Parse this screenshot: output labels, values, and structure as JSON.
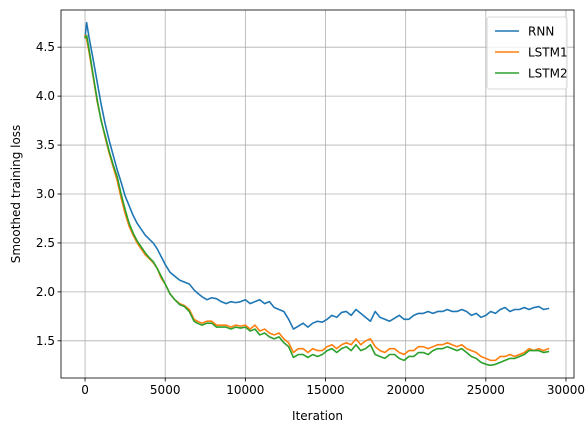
{
  "chart_data": {
    "type": "line",
    "title": "",
    "xlabel": "Iteration",
    "ylabel": "Smoothed training loss",
    "xlim": [
      -1500,
      30500
    ],
    "ylim": [
      1.12,
      4.88
    ],
    "xticks": [
      0,
      5000,
      10000,
      15000,
      20000,
      25000,
      30000
    ],
    "yticks": [
      1.5,
      2.0,
      2.5,
      3.0,
      3.5,
      4.0,
      4.5
    ],
    "xtick_labels": [
      "0",
      "5000",
      "10000",
      "15000",
      "20000",
      "25000",
      "30000"
    ],
    "ytick_labels": [
      "1.5",
      "2.0",
      "2.5",
      "3.0",
      "3.5",
      "4.0",
      "4.5"
    ],
    "grid": true,
    "legend_position": "top-right",
    "series": [
      {
        "name": "RNN",
        "color": "#1f77b4",
        "x": [
          0,
          100,
          250,
          500,
          750,
          1000,
          1250,
          1500,
          1750,
          2000,
          2250,
          2500,
          2750,
          3000,
          3250,
          3500,
          3750,
          4000,
          4250,
          4500,
          4750,
          5000,
          5300,
          5600,
          5900,
          6200,
          6500,
          6800,
          7000,
          7300,
          7600,
          7900,
          8200,
          8500,
          8800,
          9100,
          9400,
          9700,
          10000,
          10300,
          10600,
          10900,
          11200,
          11500,
          11800,
          12100,
          12400,
          12700,
          13000,
          13300,
          13600,
          13900,
          14200,
          14500,
          14800,
          15100,
          15400,
          15700,
          16000,
          16300,
          16600,
          16900,
          17200,
          17500,
          17800,
          18100,
          18400,
          18700,
          19000,
          19300,
          19600,
          19900,
          20200,
          20500,
          20800,
          21100,
          21400,
          21700,
          22000,
          22300,
          22600,
          22900,
          23200,
          23500,
          23800,
          24100,
          24400,
          24700,
          25000,
          25300,
          25600,
          25900,
          26200,
          26500,
          26800,
          27100,
          27400,
          27700,
          28000,
          28300,
          28600,
          28900
        ],
        "y": [
          4.6,
          4.75,
          4.6,
          4.38,
          4.15,
          3.92,
          3.72,
          3.55,
          3.4,
          3.25,
          3.12,
          2.98,
          2.88,
          2.78,
          2.7,
          2.64,
          2.58,
          2.54,
          2.5,
          2.44,
          2.36,
          2.28,
          2.2,
          2.16,
          2.12,
          2.1,
          2.08,
          2.02,
          1.99,
          1.95,
          1.92,
          1.94,
          1.93,
          1.9,
          1.88,
          1.9,
          1.89,
          1.9,
          1.92,
          1.88,
          1.9,
          1.92,
          1.88,
          1.9,
          1.84,
          1.82,
          1.8,
          1.72,
          1.62,
          1.65,
          1.68,
          1.64,
          1.68,
          1.7,
          1.69,
          1.72,
          1.76,
          1.74,
          1.79,
          1.8,
          1.76,
          1.82,
          1.78,
          1.74,
          1.7,
          1.8,
          1.74,
          1.72,
          1.7,
          1.73,
          1.76,
          1.72,
          1.72,
          1.76,
          1.78,
          1.78,
          1.8,
          1.78,
          1.8,
          1.8,
          1.82,
          1.8,
          1.8,
          1.82,
          1.8,
          1.76,
          1.78,
          1.74,
          1.76,
          1.8,
          1.78,
          1.82,
          1.84,
          1.8,
          1.82,
          1.82,
          1.84,
          1.82,
          1.84,
          1.85,
          1.82,
          1.83
        ]
      },
      {
        "name": "LSTM1",
        "color": "#ff7f0e",
        "x": [
          0,
          100,
          250,
          500,
          750,
          1000,
          1250,
          1500,
          1750,
          2000,
          2250,
          2500,
          2750,
          3000,
          3250,
          3500,
          3750,
          4000,
          4250,
          4500,
          4750,
          5000,
          5300,
          5600,
          5900,
          6200,
          6500,
          6800,
          7000,
          7300,
          7600,
          7900,
          8200,
          8500,
          8800,
          9100,
          9400,
          9700,
          10000,
          10300,
          10600,
          10900,
          11200,
          11500,
          11800,
          12100,
          12400,
          12700,
          13000,
          13300,
          13600,
          13900,
          14200,
          14500,
          14800,
          15100,
          15400,
          15700,
          16000,
          16300,
          16600,
          16900,
          17200,
          17500,
          17800,
          18100,
          18400,
          18700,
          19000,
          19300,
          19600,
          19900,
          20200,
          20500,
          20800,
          21100,
          21400,
          21700,
          22000,
          22300,
          22600,
          22900,
          23200,
          23500,
          23800,
          24100,
          24400,
          24700,
          25000,
          25300,
          25600,
          25900,
          26200,
          26500,
          26800,
          27100,
          27400,
          27700,
          28000,
          28300,
          28600,
          28900
        ],
        "y": [
          4.62,
          4.58,
          4.45,
          4.2,
          3.95,
          3.76,
          3.58,
          3.42,
          3.28,
          3.14,
          2.96,
          2.8,
          2.67,
          2.58,
          2.5,
          2.44,
          2.38,
          2.34,
          2.3,
          2.24,
          2.14,
          2.08,
          1.98,
          1.92,
          1.88,
          1.86,
          1.82,
          1.72,
          1.7,
          1.68,
          1.7,
          1.7,
          1.66,
          1.66,
          1.66,
          1.64,
          1.66,
          1.65,
          1.66,
          1.62,
          1.66,
          1.6,
          1.62,
          1.58,
          1.56,
          1.58,
          1.52,
          1.48,
          1.38,
          1.42,
          1.42,
          1.38,
          1.42,
          1.4,
          1.4,
          1.44,
          1.46,
          1.42,
          1.46,
          1.48,
          1.46,
          1.52,
          1.46,
          1.5,
          1.52,
          1.44,
          1.4,
          1.38,
          1.42,
          1.42,
          1.38,
          1.36,
          1.4,
          1.4,
          1.44,
          1.44,
          1.42,
          1.44,
          1.46,
          1.46,
          1.48,
          1.46,
          1.44,
          1.46,
          1.42,
          1.4,
          1.38,
          1.34,
          1.32,
          1.3,
          1.3,
          1.34,
          1.34,
          1.36,
          1.34,
          1.36,
          1.38,
          1.42,
          1.4,
          1.42,
          1.4,
          1.42
        ]
      },
      {
        "name": "LSTM2",
        "color": "#2ca02c",
        "x": [
          0,
          100,
          250,
          500,
          750,
          1000,
          1250,
          1500,
          1750,
          2000,
          2250,
          2500,
          2750,
          3000,
          3250,
          3500,
          3750,
          4000,
          4250,
          4500,
          4750,
          5000,
          5300,
          5600,
          5900,
          6200,
          6500,
          6800,
          7000,
          7300,
          7600,
          7900,
          8200,
          8500,
          8800,
          9100,
          9400,
          9700,
          10000,
          10300,
          10600,
          10900,
          11200,
          11500,
          11800,
          12100,
          12400,
          12700,
          13000,
          13300,
          13600,
          13900,
          14200,
          14500,
          14800,
          15100,
          15400,
          15700,
          16000,
          16300,
          16600,
          16900,
          17200,
          17500,
          17800,
          18100,
          18400,
          18700,
          19000,
          19300,
          19600,
          19900,
          20200,
          20500,
          20800,
          21100,
          21400,
          21700,
          22000,
          22300,
          22600,
          22900,
          23200,
          23500,
          23800,
          24100,
          24400,
          24700,
          25000,
          25300,
          25600,
          25900,
          26200,
          26500,
          26800,
          27100,
          27400,
          27700,
          28000,
          28300,
          28600,
          28900
        ],
        "y": [
          4.6,
          4.62,
          4.48,
          4.22,
          3.97,
          3.75,
          3.6,
          3.44,
          3.3,
          3.18,
          3.0,
          2.84,
          2.7,
          2.6,
          2.52,
          2.46,
          2.4,
          2.35,
          2.31,
          2.24,
          2.16,
          2.08,
          1.98,
          1.92,
          1.87,
          1.85,
          1.8,
          1.7,
          1.68,
          1.66,
          1.68,
          1.68,
          1.64,
          1.64,
          1.64,
          1.62,
          1.64,
          1.63,
          1.64,
          1.6,
          1.62,
          1.56,
          1.58,
          1.54,
          1.52,
          1.54,
          1.48,
          1.44,
          1.33,
          1.36,
          1.36,
          1.33,
          1.36,
          1.34,
          1.36,
          1.4,
          1.42,
          1.38,
          1.42,
          1.44,
          1.4,
          1.46,
          1.4,
          1.42,
          1.46,
          1.36,
          1.34,
          1.32,
          1.36,
          1.36,
          1.32,
          1.3,
          1.34,
          1.34,
          1.38,
          1.38,
          1.36,
          1.4,
          1.42,
          1.42,
          1.44,
          1.42,
          1.4,
          1.42,
          1.38,
          1.34,
          1.32,
          1.28,
          1.26,
          1.25,
          1.26,
          1.28,
          1.3,
          1.32,
          1.32,
          1.34,
          1.36,
          1.4,
          1.4,
          1.4,
          1.38,
          1.39
        ]
      }
    ]
  }
}
